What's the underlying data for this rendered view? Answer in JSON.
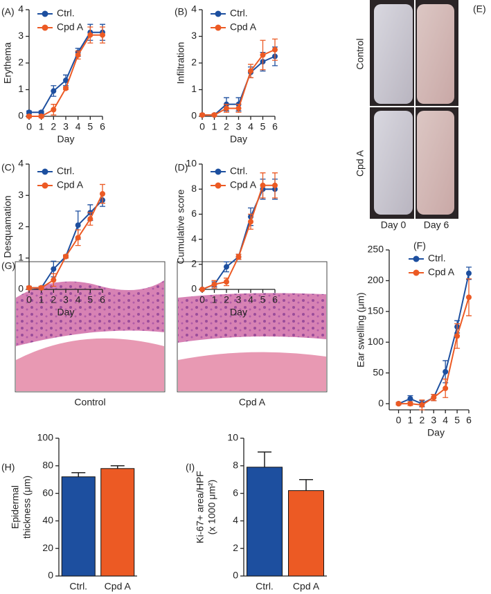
{
  "chart_data": [
    {
      "type": "line",
      "panel": "(A)",
      "ylabel": "Erythema",
      "xlabel": "Day",
      "legend": "upper left",
      "x": [
        0,
        1,
        2,
        3,
        4,
        5,
        6
      ],
      "xlim": [
        0,
        6
      ],
      "xticks": [
        0,
        1,
        2,
        3,
        4,
        5,
        6
      ],
      "ylim": [
        0,
        4
      ],
      "yticks": [
        0,
        1,
        2,
        3,
        4
      ],
      "series": [
        {
          "name": "Ctrl.",
          "color": "#1d4f9f",
          "values": [
            0.15,
            0.15,
            0.95,
            1.35,
            2.4,
            3.15,
            3.15
          ],
          "errors": [
            0.05,
            0.05,
            0.2,
            0.2,
            0.15,
            0.3,
            0.3
          ]
        },
        {
          "name": "Cpd A",
          "color": "#ec5a24",
          "values": [
            0,
            0,
            0.25,
            1.05,
            2.3,
            3.05,
            3.05
          ],
          "errors": [
            0.05,
            0.05,
            0.2,
            0.05,
            0.15,
            0.3,
            0.3
          ]
        }
      ]
    },
    {
      "type": "line",
      "panel": "(B)",
      "ylabel": "Infiltration",
      "xlabel": "Day",
      "legend": "upper left",
      "x": [
        0,
        1,
        2,
        3,
        4,
        5,
        6
      ],
      "xlim": [
        0,
        6
      ],
      "xticks": [
        0,
        1,
        2,
        3,
        4,
        5,
        6
      ],
      "ylim": [
        0,
        4
      ],
      "yticks": [
        0,
        1,
        2,
        3,
        4
      ],
      "series": [
        {
          "name": "Ctrl.",
          "color": "#1d4f9f",
          "values": [
            0.05,
            0.05,
            0.45,
            0.45,
            1.65,
            2.05,
            2.25
          ],
          "errors": [
            0.05,
            0.05,
            0.25,
            0.25,
            0.2,
            0.35,
            0.35
          ]
        },
        {
          "name": "Cpd A",
          "color": "#ec5a24",
          "values": [
            0.05,
            0.05,
            0.3,
            0.3,
            1.7,
            2.3,
            2.5
          ],
          "errors": [
            0.05,
            0.05,
            0.15,
            0.15,
            0.25,
            0.55,
            0.4
          ]
        }
      ]
    },
    {
      "type": "line",
      "panel": "(C)",
      "ylabel": "Desquamation",
      "xlabel": "Day",
      "legend": "upper left",
      "x": [
        0,
        1,
        2,
        3,
        4,
        5,
        6
      ],
      "xlim": [
        0,
        6
      ],
      "xticks": [
        0,
        1,
        2,
        3,
        4,
        5,
        6
      ],
      "ylim": [
        0,
        4
      ],
      "yticks": [
        0,
        1,
        2,
        3,
        4
      ],
      "series": [
        {
          "name": "Ctrl.",
          "color": "#1d4f9f",
          "values": [
            0.05,
            0.05,
            0.65,
            1.05,
            2.05,
            2.45,
            2.85
          ],
          "errors": [
            0.05,
            0.05,
            0.25,
            0.05,
            0.45,
            0.25,
            0.2
          ]
        },
        {
          "name": "Cpd A",
          "color": "#ec5a24",
          "values": [
            0.05,
            0.05,
            0.3,
            1.05,
            1.65,
            2.25,
            3.05
          ],
          "errors": [
            0.05,
            0.05,
            0.2,
            0.05,
            0.25,
            0.2,
            0.3
          ]
        }
      ]
    },
    {
      "type": "line",
      "panel": "(D)",
      "ylabel": "Cumulative score",
      "xlabel": "Day",
      "legend": "upper left",
      "x": [
        0,
        1,
        2,
        3,
        4,
        5,
        6
      ],
      "xlim": [
        0,
        6
      ],
      "xticks": [
        0,
        1,
        2,
        3,
        4,
        5,
        6
      ],
      "ylim": [
        0,
        10
      ],
      "yticks": [
        0,
        2,
        4,
        6,
        8,
        10
      ],
      "series": [
        {
          "name": "Ctrl.",
          "color": "#1d4f9f",
          "values": [
            0,
            0.4,
            1.8,
            2.6,
            5.8,
            8.0,
            8.0
          ],
          "errors": [
            0.05,
            0.2,
            0.4,
            0.2,
            0.7,
            0.8,
            0.8
          ]
        },
        {
          "name": "Cpd A",
          "color": "#ec5a24",
          "values": [
            0,
            0.4,
            0.6,
            2.6,
            5.4,
            8.3,
            8.3
          ],
          "errors": [
            0.05,
            0.3,
            0.3,
            0.2,
            0.6,
            1.0,
            1.0
          ]
        }
      ]
    },
    {
      "type": "line",
      "panel": "(F)",
      "ylabel": "Ear swelling (μm)",
      "xlabel": "Day",
      "legend": "upper left",
      "x": [
        0,
        1,
        2,
        3,
        4,
        5,
        6
      ],
      "xlim": [
        -0.8,
        6
      ],
      "xticks": [
        0,
        1,
        2,
        3,
        4,
        5,
        6
      ],
      "ylim": [
        -10,
        250
      ],
      "yticks": [
        0,
        50,
        100,
        150,
        200,
        250
      ],
      "series": [
        {
          "name": "Ctrl.",
          "color": "#1d4f9f",
          "values": [
            0,
            8,
            0,
            10,
            52,
            125,
            212
          ],
          "errors": [
            2,
            5,
            5,
            5,
            18,
            10,
            10
          ]
        },
        {
          "name": "Cpd A",
          "color": "#ec5a24",
          "values": [
            0,
            0,
            -2,
            10,
            25,
            110,
            173
          ],
          "errors": [
            2,
            3,
            8,
            5,
            15,
            20,
            30
          ]
        }
      ]
    },
    {
      "type": "bar",
      "panel": "(H)",
      "ylabel": [
        "Epidermal",
        "thickness (μm)"
      ],
      "categories": [
        "Ctrl.",
        "Cpd A"
      ],
      "values": [
        72,
        78
      ],
      "errors": [
        3,
        2
      ],
      "colors": [
        "#1d4f9f",
        "#ec5a24"
      ],
      "ylim": [
        0,
        100
      ],
      "yticks": [
        0,
        20,
        40,
        60,
        80,
        100
      ]
    },
    {
      "type": "bar",
      "panel": "(I)",
      "ylabel": [
        "Ki-67+ area/HPF",
        "(x 1000 μm²)"
      ],
      "categories": [
        "Ctrl.",
        "Cpd A"
      ],
      "values": [
        7.9,
        6.2
      ],
      "errors": [
        1.1,
        0.8
      ],
      "colors": [
        "#1d4f9f",
        "#ec5a24"
      ],
      "ylim": [
        0,
        10
      ],
      "yticks": [
        0,
        2,
        4,
        6,
        8,
        10
      ]
    }
  ],
  "photos": {
    "E": {
      "label": "(E)",
      "rows": [
        "Control",
        "Cpd A"
      ],
      "columns": [
        "Day 0",
        "Day 6"
      ]
    },
    "G": {
      "label": "(G)",
      "captions": [
        "Control",
        "Cpd A"
      ]
    }
  }
}
